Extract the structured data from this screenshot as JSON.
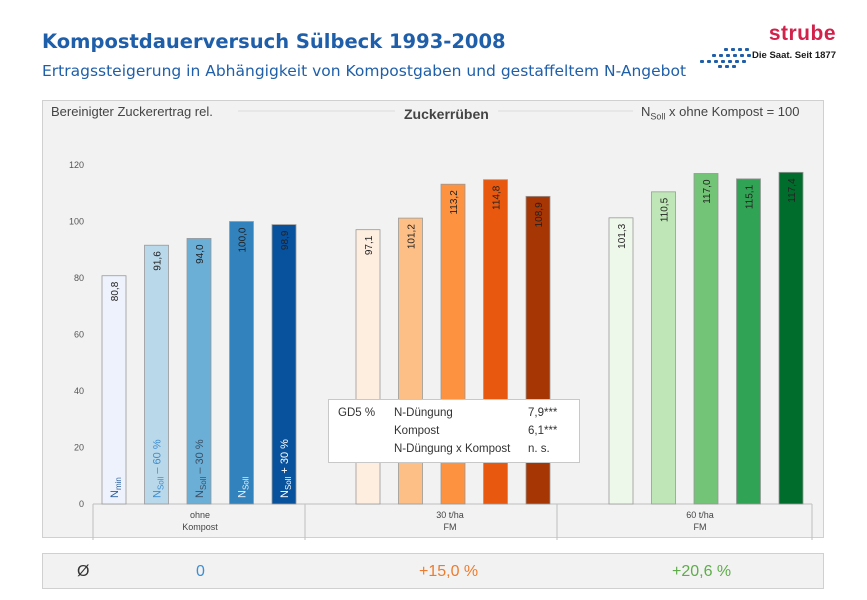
{
  "header": {
    "title": "Kompostdauerversuch Sülbeck 1993-2008",
    "subtitle": "Ertragssteigerung in Abhängigkeit von Kompostgaben und gestaffeltem N-Angebot"
  },
  "logo": {
    "word": "strube",
    "tagline": "Die Saat. Seit 1877",
    "brand_color": "#d2214b",
    "dots_color": "#1f5fa9"
  },
  "chart_data": {
    "type": "bar",
    "title": "Zuckerrüben",
    "ylabel": "Bereinigter Zuckerertrag rel.",
    "xlabel": "",
    "ylim": [
      0,
      120
    ],
    "yticks": [
      0,
      20,
      40,
      60,
      80,
      100,
      120
    ],
    "grid": false,
    "normalization": {
      "base": "N",
      "sub": "Soll",
      "rest": " x ohne Kompost = 100"
    },
    "groups": [
      {
        "label_lines": [
          "ohne",
          "Kompost"
        ],
        "bars": [
          {
            "value": 80.8,
            "label": "80,8",
            "color": "#eef2fc",
            "inlabel": {
              "base": "N",
              "sub": "min",
              "rest": ""
            },
            "inlabel_color": "#2a5f9e"
          },
          {
            "value": 91.6,
            "label": "91,6",
            "color": "#b9d8ea",
            "inlabel": {
              "base": "N",
              "sub": "Soll",
              "rest": " – 60 %"
            },
            "inlabel_color": "#3d8fd0"
          },
          {
            "value": 94.0,
            "label": "94,0",
            "color": "#6baed6",
            "inlabel": {
              "base": "N",
              "sub": "Soll",
              "rest": " – 30 %"
            },
            "inlabel_color": "#3a4f63"
          },
          {
            "value": 100.0,
            "label": "100,0",
            "color": "#3182bd",
            "inlabel": {
              "base": "N",
              "sub": "Soll",
              "rest": ""
            },
            "inlabel_color": "#e8f0f8"
          },
          {
            "value": 98.9,
            "label": "98,9",
            "color": "#08519c",
            "inlabel": {
              "base": "N",
              "sub": "Soll",
              "rest": " + 30 %"
            },
            "inlabel_color": "#ffffff"
          }
        ]
      },
      {
        "label_lines": [
          "30 t/ha",
          "FM"
        ],
        "bars": [
          {
            "value": 97.1,
            "label": "97,1",
            "color": "#feeee0"
          },
          {
            "value": 101.2,
            "label": "101,2",
            "color": "#fdbf86"
          },
          {
            "value": 113.2,
            "label": "113,2",
            "color": "#fd9240"
          },
          {
            "value": 114.8,
            "label": "114,8",
            "color": "#e8580e"
          },
          {
            "value": 108.9,
            "label": "108,9",
            "color": "#a63603"
          }
        ]
      },
      {
        "label_lines": [
          "60 t/ha",
          "FM"
        ],
        "bars": [
          {
            "value": 101.3,
            "label": "101,3",
            "color": "#eef8ea"
          },
          {
            "value": 110.5,
            "label": "110,5",
            "color": "#bfe6b7"
          },
          {
            "value": 117.0,
            "label": "117,0",
            "color": "#73c476"
          },
          {
            "value": 115.1,
            "label": "115,1",
            "color": "#31a354"
          },
          {
            "value": 117.4,
            "label": "117,4",
            "color": "#006d2c"
          }
        ]
      }
    ]
  },
  "stats_box": {
    "rows": [
      {
        "c1": "GD5 %",
        "c2": "N-Düngung",
        "c3": "7,9***"
      },
      {
        "c1": "",
        "c2": "Kompost",
        "c3": "6,1***"
      },
      {
        "c1": "",
        "c2": "N-Düngung x Kompost",
        "c3": "n. s."
      }
    ]
  },
  "averages": {
    "symbol": "Ø",
    "values": [
      "0",
      "+15,0 %",
      "+20,6 %"
    ],
    "colors": [
      "#3c8fd0",
      "#ee7b2c",
      "#5eac4a"
    ]
  }
}
